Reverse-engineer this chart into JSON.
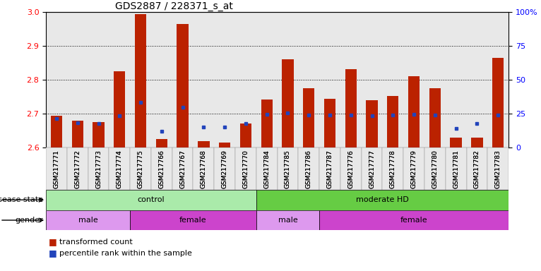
{
  "title": "GDS2887 / 228371_s_at",
  "samples": [
    "GSM217771",
    "GSM217772",
    "GSM217773",
    "GSM217774",
    "GSM217775",
    "GSM217766",
    "GSM217767",
    "GSM217768",
    "GSM217769",
    "GSM217770",
    "GSM217784",
    "GSM217785",
    "GSM217786",
    "GSM217787",
    "GSM217776",
    "GSM217777",
    "GSM217778",
    "GSM217779",
    "GSM217780",
    "GSM217781",
    "GSM217782",
    "GSM217783"
  ],
  "bar_values": [
    2.695,
    2.68,
    2.676,
    2.825,
    2.995,
    2.625,
    2.965,
    2.62,
    2.615,
    2.672,
    2.742,
    2.86,
    2.775,
    2.745,
    2.832,
    2.74,
    2.752,
    2.81,
    2.775,
    2.63,
    2.63,
    2.865
  ],
  "percentile_values": [
    2.685,
    2.673,
    2.671,
    2.695,
    2.733,
    2.649,
    2.72,
    2.662,
    2.661,
    2.671,
    2.698,
    2.703,
    2.696,
    2.696,
    2.697,
    2.695,
    2.697,
    2.698,
    2.697,
    2.657,
    2.671,
    2.697
  ],
  "ylim_left": [
    2.6,
    3.0
  ],
  "ylim_right": [
    0,
    100
  ],
  "yticks_left": [
    2.6,
    2.7,
    2.8,
    2.9,
    3.0
  ],
  "yticks_right": [
    0,
    25,
    50,
    75,
    100
  ],
  "ytick_labels_right": [
    "0",
    "25",
    "50",
    "75",
    "100%"
  ],
  "bar_color": "#bb2200",
  "percentile_color": "#2244bb",
  "background_color": "#e8e8e8",
  "disease_state_groups": [
    {
      "label": "control",
      "start": 0,
      "end": 10,
      "color": "#aaeaaa"
    },
    {
      "label": "moderate HD",
      "start": 10,
      "end": 22,
      "color": "#66cc44"
    }
  ],
  "gender_groups": [
    {
      "label": "male",
      "start": 0,
      "end": 4,
      "color": "#dd99ee"
    },
    {
      "label": "female",
      "start": 4,
      "end": 10,
      "color": "#cc44cc"
    },
    {
      "label": "male",
      "start": 10,
      "end": 13,
      "color": "#dd99ee"
    },
    {
      "label": "female",
      "start": 13,
      "end": 22,
      "color": "#cc44cc"
    }
  ],
  "legend_items": [
    {
      "label": "transformed count",
      "color": "#bb2200"
    },
    {
      "label": "percentile rank within the sample",
      "color": "#2244bb"
    }
  ]
}
